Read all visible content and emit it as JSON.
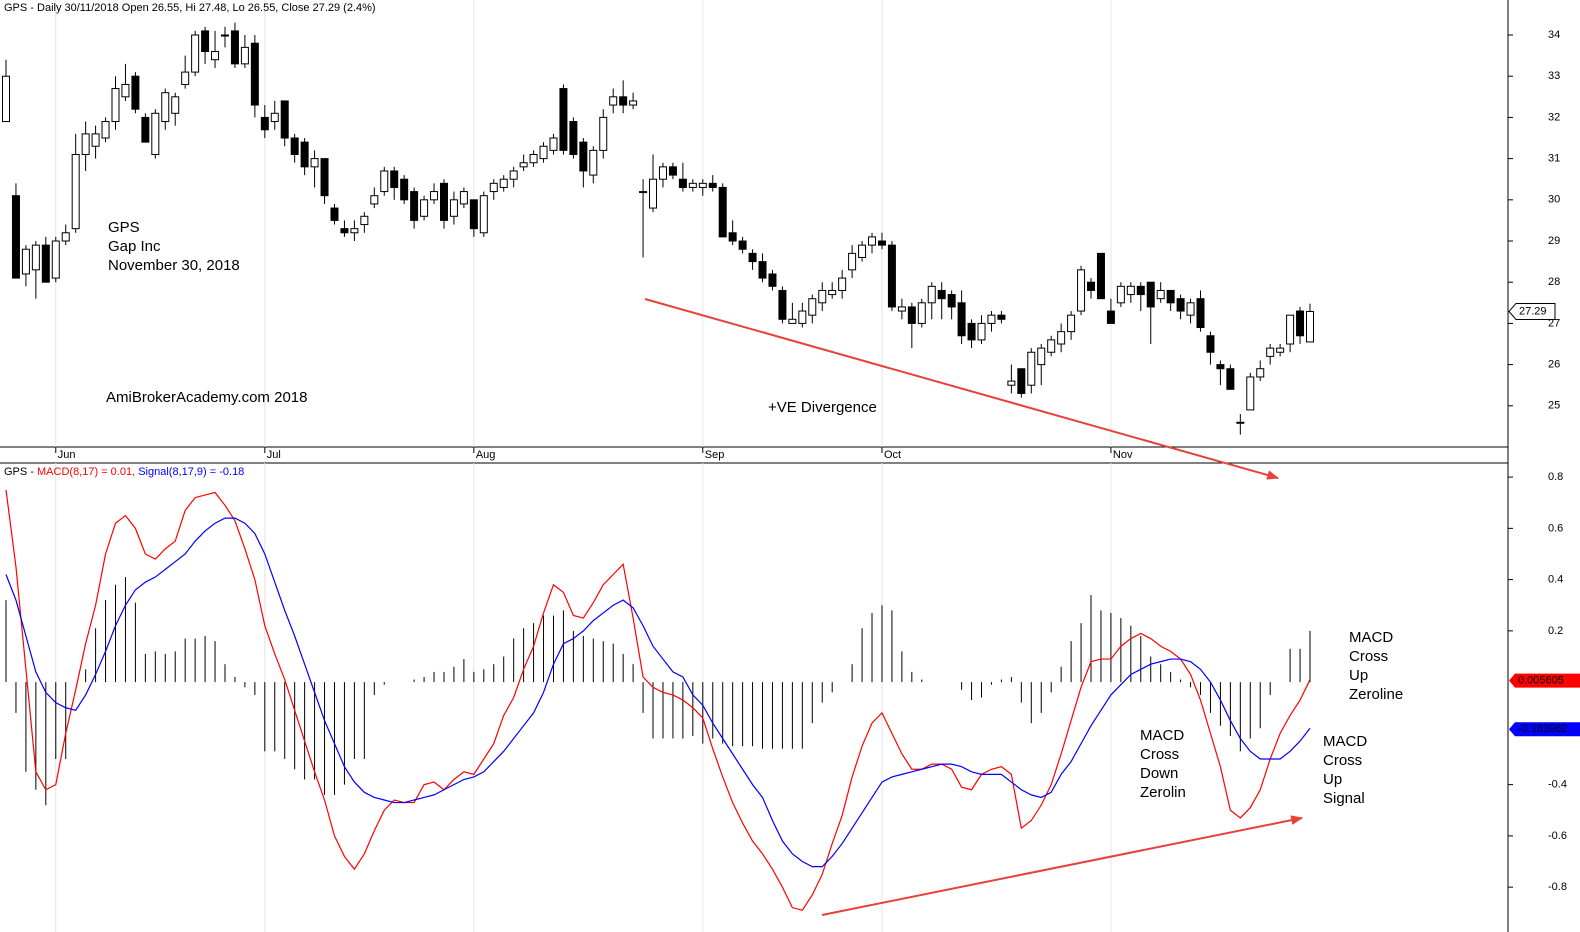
{
  "chart_data": [
    {
      "type": "candlestick",
      "title": "GPS - Daily 30/11/2018 Open 26.55, Hi 27.48, Lo 26.55, Close 27.29 (2.4%)",
      "annotations": [
        "GPS",
        "Gap Inc",
        "November 30, 2018",
        "AmiBrokerAcademy.com  2018",
        "+VE Divergence"
      ],
      "annotation_color": "#e8403a",
      "categories": [
        null,
        null,
        null,
        null,
        null,
        "Jun",
        null,
        null,
        null,
        null,
        null,
        null,
        null,
        null,
        null,
        null,
        null,
        null,
        null,
        null,
        null,
        null,
        null,
        null,
        null,
        null,
        "Jul",
        null,
        null,
        null,
        null,
        null,
        null,
        null,
        null,
        null,
        null,
        null,
        null,
        null,
        null,
        null,
        null,
        null,
        null,
        null,
        null,
        "Aug",
        null,
        null,
        null,
        null,
        null,
        null,
        null,
        null,
        null,
        null,
        null,
        null,
        null,
        null,
        null,
        null,
        null,
        null,
        null,
        null,
        null,
        null,
        "Sep",
        null,
        null,
        null,
        null,
        null,
        null,
        null,
        null,
        null,
        null,
        null,
        null,
        null,
        null,
        null,
        null,
        null,
        "Oct",
        null,
        null,
        null,
        null,
        null,
        null,
        null,
        null,
        null,
        null,
        null,
        null,
        null,
        null,
        null,
        null,
        null,
        null,
        null,
        null,
        null,
        null,
        "Nov",
        null,
        null,
        null,
        null,
        null,
        null,
        null,
        null,
        null,
        null,
        null,
        null,
        null,
        null,
        null,
        null,
        null,
        null,
        null,
        null
      ],
      "open": [
        31.9,
        30.1,
        28.2,
        28.3,
        28.9,
        28.1,
        29.0,
        29.3,
        31.1,
        31.3,
        31.5,
        31.9,
        32.5,
        33.0,
        32.0,
        31.1,
        31.9,
        32.1,
        32.8,
        33.1,
        34.1,
        33.4,
        34.0,
        34.1,
        33.3,
        33.8,
        32.0,
        31.9,
        32.4,
        31.5,
        31.4,
        30.8,
        31.0,
        29.8,
        29.3,
        29.2,
        29.4,
        29.9,
        30.2,
        30.7,
        30.5,
        30.2,
        29.6,
        30.0,
        30.4,
        29.6,
        29.9,
        30.0,
        29.2,
        30.2,
        30.3,
        30.5,
        30.8,
        30.9,
        31.0,
        31.2,
        32.7,
        31.9,
        31.4,
        30.6,
        31.2,
        32.3,
        32.5,
        32.3,
        30.2,
        29.8,
        30.5,
        30.8,
        30.5,
        30.3,
        30.3,
        30.4,
        30.3,
        29.2,
        29.0,
        28.7,
        28.5,
        28.2,
        27.8,
        27.0,
        27.0,
        27.2,
        27.5,
        27.7,
        27.8,
        28.3,
        28.6,
        28.9,
        29.0,
        28.9,
        27.3,
        27.4,
        27.0,
        27.5,
        27.8,
        27.7,
        27.5,
        27.0,
        26.6,
        27.0,
        27.2,
        25.5,
        25.9,
        25.5,
        26.0,
        26.3,
        26.5,
        26.8,
        27.3,
        28.0,
        28.7,
        27.3,
        27.5,
        27.7,
        27.9,
        28.0,
        27.6,
        27.8,
        27.6,
        27.2,
        27.6,
        26.7,
        26.0,
        25.9,
        24.6,
        24.9,
        25.7,
        26.2,
        26.3,
        26.5,
        27.3,
        26.55
      ],
      "high": [
        33.4,
        30.4,
        28.9,
        29.0,
        29.1,
        29.1,
        29.4,
        31.6,
        31.9,
        31.8,
        32.0,
        33.0,
        33.3,
        33.1,
        32.1,
        32.2,
        32.7,
        32.6,
        33.5,
        34.1,
        34.2,
        34.1,
        34.2,
        34.3,
        34.0,
        34.0,
        32.3,
        32.4,
        32.4,
        31.6,
        31.5,
        31.2,
        31.0,
        29.9,
        29.5,
        29.5,
        29.7,
        30.3,
        30.8,
        30.8,
        30.6,
        30.3,
        30.1,
        30.4,
        30.5,
        30.2,
        30.3,
        30.0,
        30.2,
        30.5,
        30.6,
        30.8,
        31.1,
        31.2,
        31.4,
        31.6,
        32.8,
        32.0,
        31.5,
        31.3,
        32.2,
        32.7,
        32.9,
        32.6,
        30.5,
        31.1,
        30.9,
        30.9,
        30.9,
        30.5,
        30.5,
        30.6,
        30.4,
        29.5,
        29.1,
        28.8,
        28.7,
        28.3,
        27.9,
        27.5,
        27.5,
        27.7,
        28.0,
        28.0,
        28.3,
        28.9,
        29.0,
        29.2,
        29.2,
        29.0,
        27.6,
        27.5,
        27.6,
        28.0,
        28.0,
        27.8,
        27.8,
        27.1,
        27.2,
        27.3,
        27.3,
        26.0,
        25.9,
        26.4,
        26.5,
        26.7,
        27.0,
        27.3,
        28.4,
        28.1,
        28.7,
        27.6,
        28.0,
        28.0,
        28.0,
        28.0,
        28.0,
        27.8,
        27.7,
        27.6,
        27.8,
        26.8,
        26.1,
        26.0,
        24.8,
        25.8,
        26.1,
        26.5,
        26.5,
        27.2,
        27.4,
        27.48
      ],
      "low": [
        31.9,
        28.1,
        27.9,
        27.6,
        28.0,
        28.0,
        28.9,
        29.2,
        30.7,
        31.0,
        31.4,
        31.7,
        32.4,
        32.1,
        31.4,
        31.0,
        31.7,
        31.8,
        32.7,
        33.0,
        33.3,
        33.2,
        33.7,
        33.2,
        33.2,
        32.0,
        31.5,
        31.7,
        31.3,
        30.9,
        30.6,
        30.3,
        29.9,
        29.4,
        29.1,
        29.0,
        29.2,
        29.8,
        30.1,
        30.0,
        29.9,
        29.3,
        29.5,
        29.9,
        29.3,
        29.4,
        29.8,
        29.1,
        29.1,
        30.0,
        30.2,
        30.3,
        30.7,
        30.8,
        30.9,
        31.1,
        31.1,
        31.0,
        30.3,
        30.4,
        31.0,
        32.1,
        32.1,
        32.2,
        28.6,
        29.7,
        30.3,
        30.5,
        30.2,
        30.2,
        30.1,
        30.2,
        29.1,
        28.9,
        28.7,
        28.3,
        28.0,
        27.8,
        27.0,
        27.0,
        26.9,
        27.0,
        27.3,
        27.6,
        27.6,
        28.1,
        28.5,
        28.7,
        28.8,
        27.3,
        27.1,
        26.4,
        26.9,
        27.1,
        27.1,
        27.1,
        26.5,
        26.4,
        26.5,
        26.8,
        27.0,
        25.3,
        25.2,
        25.3,
        25.5,
        26.2,
        26.3,
        26.6,
        27.2,
        27.6,
        27.6,
        27.0,
        27.4,
        27.5,
        27.3,
        26.5,
        27.5,
        27.3,
        27.1,
        27.0,
        26.8,
        26.0,
        25.5,
        25.4,
        24.3,
        24.9,
        25.6,
        26.0,
        26.2,
        26.3,
        26.5,
        26.55
      ],
      "close": [
        33.0,
        28.1,
        28.8,
        28.9,
        28.0,
        29.0,
        29.2,
        31.1,
        31.6,
        31.6,
        31.9,
        32.7,
        32.8,
        32.2,
        31.4,
        32.1,
        32.6,
        32.5,
        33.1,
        34.0,
        33.6,
        33.6,
        34.0,
        33.3,
        33.7,
        32.3,
        31.7,
        32.1,
        31.5,
        31.1,
        30.8,
        31.0,
        30.1,
        29.5,
        29.2,
        29.3,
        29.6,
        30.1,
        30.7,
        30.3,
        30.0,
        29.5,
        30.0,
        30.2,
        29.5,
        30.0,
        30.2,
        29.3,
        30.1,
        30.4,
        30.5,
        30.7,
        30.9,
        31.1,
        31.3,
        31.5,
        31.2,
        31.1,
        30.7,
        31.2,
        32.0,
        32.5,
        32.3,
        32.4,
        30.2,
        30.5,
        30.8,
        30.6,
        30.3,
        30.4,
        30.4,
        30.3,
        29.1,
        29.0,
        28.8,
        28.5,
        28.1,
        27.9,
        27.1,
        27.1,
        27.3,
        27.6,
        27.8,
        27.8,
        28.1,
        28.7,
        28.9,
        29.1,
        28.9,
        27.4,
        27.4,
        27.0,
        27.5,
        27.9,
        27.6,
        27.4,
        26.7,
        26.6,
        27.0,
        27.2,
        27.1,
        25.6,
        25.3,
        26.3,
        26.4,
        26.6,
        26.8,
        27.2,
        28.3,
        27.8,
        27.6,
        27.0,
        27.9,
        27.9,
        27.7,
        27.4,
        27.8,
        27.5,
        27.3,
        27.5,
        26.9,
        26.3,
        25.9,
        25.4,
        24.6,
        25.7,
        25.9,
        26.4,
        26.4,
        27.2,
        26.7,
        27.29
      ],
      "up_color": "#ffffff",
      "down_color": "#000000",
      "wick_color": "#000000",
      "ylim": [
        24,
        34.85
      ],
      "yticks": [
        25,
        26,
        27,
        28,
        29,
        30,
        31,
        32,
        33,
        34
      ]
    },
    {
      "type": "line",
      "title": "GPS -",
      "annotations": [
        [
          "MACD",
          "Cross",
          "Up",
          "Zeroline"
        ],
        [
          "MACD",
          "Cross",
          "Down",
          "Zerolin"
        ],
        [
          "MACD",
          "Cross",
          "Up",
          "Signal"
        ]
      ],
      "annotation_color": "#e8403a",
      "series": [
        {
          "name": "MACD(8,17) = 0.01,",
          "color": "#ff0000",
          "last_value": 0.005605,
          "values": [
            0.75,
            0.45,
            0.05,
            -0.35,
            -0.42,
            -0.4,
            -0.2,
            -0.03,
            0.15,
            0.3,
            0.5,
            0.62,
            0.65,
            0.6,
            0.5,
            0.48,
            0.52,
            0.55,
            0.67,
            0.72,
            0.73,
            0.74,
            0.69,
            0.63,
            0.52,
            0.4,
            0.22,
            0.11,
            0.01,
            -0.11,
            -0.23,
            -0.35,
            -0.46,
            -0.6,
            -0.68,
            -0.73,
            -0.67,
            -0.58,
            -0.5,
            -0.46,
            -0.47,
            -0.47,
            -0.4,
            -0.39,
            -0.42,
            -0.38,
            -0.35,
            -0.36,
            -0.3,
            -0.24,
            -0.13,
            -0.06,
            0.05,
            0.14,
            0.27,
            0.38,
            0.35,
            0.26,
            0.25,
            0.31,
            0.38,
            0.42,
            0.46,
            0.25,
            0.02,
            -0.02,
            -0.04,
            -0.05,
            -0.07,
            -0.1,
            -0.14,
            -0.26,
            -0.37,
            -0.47,
            -0.55,
            -0.62,
            -0.67,
            -0.73,
            -0.8,
            -0.88,
            -0.89,
            -0.83,
            -0.75,
            -0.63,
            -0.52,
            -0.37,
            -0.25,
            -0.16,
            -0.12,
            -0.2,
            -0.28,
            -0.34,
            -0.34,
            -0.32,
            -0.32,
            -0.34,
            -0.41,
            -0.42,
            -0.36,
            -0.34,
            -0.33,
            -0.36,
            -0.57,
            -0.54,
            -0.48,
            -0.4,
            -0.28,
            -0.15,
            -0.02,
            0.08,
            0.09,
            0.09,
            0.14,
            0.17,
            0.19,
            0.17,
            0.14,
            0.12,
            0.09,
            0.03,
            -0.07,
            -0.2,
            -0.33,
            -0.5,
            -0.53,
            -0.49,
            -0.42,
            -0.3,
            -0.2,
            -0.13,
            -0.07,
            0.01
          ]
        },
        {
          "name": "Signal(8,17,9) = -0.18",
          "color": "#0000ff",
          "last_value": -0.183962,
          "values": [
            0.42,
            0.32,
            0.18,
            0.04,
            -0.04,
            -0.08,
            -0.1,
            -0.11,
            -0.05,
            0.03,
            0.12,
            0.22,
            0.3,
            0.36,
            0.39,
            0.41,
            0.44,
            0.47,
            0.5,
            0.55,
            0.59,
            0.62,
            0.64,
            0.64,
            0.62,
            0.58,
            0.5,
            0.39,
            0.28,
            0.18,
            0.07,
            -0.04,
            -0.15,
            -0.24,
            -0.33,
            -0.39,
            -0.43,
            -0.45,
            -0.46,
            -0.47,
            -0.47,
            -0.46,
            -0.45,
            -0.44,
            -0.42,
            -0.4,
            -0.38,
            -0.37,
            -0.35,
            -0.31,
            -0.27,
            -0.22,
            -0.17,
            -0.12,
            -0.04,
            0.07,
            0.15,
            0.17,
            0.2,
            0.24,
            0.27,
            0.3,
            0.32,
            0.29,
            0.22,
            0.14,
            0.09,
            0.04,
            0.02,
            -0.05,
            -0.09,
            -0.16,
            -0.22,
            -0.28,
            -0.34,
            -0.4,
            -0.45,
            -0.54,
            -0.62,
            -0.67,
            -0.7,
            -0.72,
            -0.72,
            -0.68,
            -0.63,
            -0.57,
            -0.51,
            -0.45,
            -0.39,
            -0.37,
            -0.36,
            -0.35,
            -0.34,
            -0.33,
            -0.32,
            -0.32,
            -0.33,
            -0.35,
            -0.36,
            -0.36,
            -0.36,
            -0.39,
            -0.42,
            -0.44,
            -0.45,
            -0.43,
            -0.36,
            -0.31,
            -0.24,
            -0.17,
            -0.11,
            -0.05,
            -0.01,
            0.03,
            0.05,
            0.07,
            0.08,
            0.09,
            0.09,
            0.08,
            0.05,
            0.0,
            -0.07,
            -0.15,
            -0.22,
            -0.27,
            -0.3,
            -0.3,
            -0.3,
            -0.27,
            -0.23,
            -0.18
          ]
        }
      ],
      "histogram": [
        0.32,
        -0.12,
        -0.35,
        -0.42,
        -0.48,
        -0.3,
        -0.3,
        0.0,
        0.05,
        0.21,
        0.32,
        0.38,
        0.41,
        0.31,
        0.11,
        0.12,
        0.11,
        0.12,
        0.17,
        0.17,
        0.18,
        0.16,
        0.07,
        0.02,
        -0.02,
        -0.05,
        -0.27,
        -0.27,
        -0.3,
        -0.34,
        -0.38,
        -0.38,
        -0.44,
        -0.44,
        -0.4,
        -0.3,
        -0.3,
        -0.05,
        -0.01,
        0.0,
        0.0,
        0.01,
        0.02,
        0.04,
        0.04,
        0.06,
        0.09,
        0.04,
        0.05,
        0.07,
        0.1,
        0.17,
        0.21,
        0.23,
        0.26,
        0.26,
        0.28,
        0.2,
        0.18,
        0.17,
        0.16,
        0.15,
        0.11,
        0.07,
        -0.12,
        -0.22,
        -0.22,
        -0.22,
        -0.22,
        -0.21,
        -0.24,
        -0.22,
        -0.24,
        -0.25,
        -0.25,
        -0.25,
        -0.26,
        -0.26,
        -0.26,
        -0.26,
        -0.26,
        -0.16,
        -0.08,
        -0.04,
        0.0,
        0.07,
        0.21,
        0.27,
        0.3,
        0.28,
        0.12,
        0.04,
        0.01,
        0.0,
        0.0,
        0.0,
        -0.03,
        -0.07,
        -0.06,
        -0.01,
        0.01,
        0.02,
        -0.08,
        -0.16,
        -0.12,
        -0.04,
        0.06,
        0.16,
        0.23,
        0.34,
        0.28,
        0.27,
        0.25,
        0.22,
        0.18,
        0.1,
        0.07,
        0.04,
        0.01,
        -0.02,
        -0.05,
        -0.12,
        -0.17,
        -0.21,
        -0.27,
        -0.22,
        -0.18,
        -0.05,
        0.0,
        0.13,
        0.13,
        0.2
      ],
      "histogram_color": "#000000",
      "ylim": [
        -0.975,
        0.855
      ],
      "yticks": [
        0.8,
        0.6,
        0.4,
        0.2,
        -0.4,
        -0.6,
        -0.8
      ]
    }
  ]
}
